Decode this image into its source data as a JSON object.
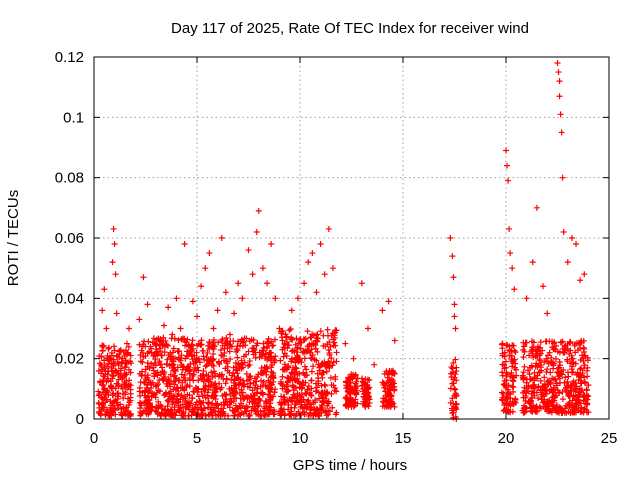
{
  "chart_data": {
    "type": "scatter",
    "title": "Day 117 of 2025, Rate Of TEC Index for receiver wind",
    "xlabel": "GPS time / hours",
    "ylabel": "ROTI / TECUs",
    "xlim": [
      0,
      25
    ],
    "ylim": [
      0,
      0.12
    ],
    "x_ticks": [
      0,
      5,
      10,
      15,
      20,
      25
    ],
    "y_ticks": [
      0,
      0.02,
      0.04,
      0.06,
      0.08,
      0.1,
      0.12
    ],
    "x_tick_labels": [
      "0",
      "5",
      "10",
      "15",
      "20",
      "25"
    ],
    "y_tick_labels": [
      "0",
      "0.02",
      "0.04",
      "0.06",
      "0.08",
      "0.1",
      "0.12"
    ],
    "grid": true,
    "marker": "plus",
    "color": "#ff0000",
    "series": [
      {
        "points": [
          [
            0.3,
            0.012
          ],
          [
            0.4,
            0.036
          ],
          [
            0.5,
            0.043
          ],
          [
            0.6,
            0.03
          ],
          [
            0.7,
            0.008
          ],
          [
            0.8,
            0.02
          ],
          [
            0.9,
            0.052
          ],
          [
            0.95,
            0.063
          ],
          [
            1.0,
            0.058
          ],
          [
            1.05,
            0.048
          ],
          [
            1.1,
            0.035
          ],
          [
            1.2,
            0.015
          ],
          [
            1.4,
            0.01
          ],
          [
            1.6,
            0.025
          ],
          [
            1.7,
            0.03
          ],
          [
            2.2,
            0.033
          ],
          [
            2.4,
            0.047
          ],
          [
            2.6,
            0.038
          ],
          [
            2.8,
            0.022
          ],
          [
            3.0,
            0.015
          ],
          [
            3.2,
            0.026
          ],
          [
            3.4,
            0.031
          ],
          [
            3.6,
            0.037
          ],
          [
            3.8,
            0.028
          ],
          [
            4.0,
            0.04
          ],
          [
            4.2,
            0.03
          ],
          [
            4.4,
            0.058
          ],
          [
            4.6,
            0.024
          ],
          [
            4.8,
            0.039
          ],
          [
            5.0,
            0.034
          ],
          [
            5.2,
            0.044
          ],
          [
            5.4,
            0.05
          ],
          [
            5.6,
            0.055
          ],
          [
            5.8,
            0.03
          ],
          [
            6.0,
            0.036
          ],
          [
            6.2,
            0.06
          ],
          [
            6.4,
            0.042
          ],
          [
            6.6,
            0.028
          ],
          [
            6.8,
            0.035
          ],
          [
            7.0,
            0.045
          ],
          [
            7.2,
            0.04
          ],
          [
            7.5,
            0.056
          ],
          [
            7.7,
            0.048
          ],
          [
            7.9,
            0.062
          ],
          [
            8.0,
            0.069
          ],
          [
            8.2,
            0.05
          ],
          [
            8.4,
            0.045
          ],
          [
            8.6,
            0.058
          ],
          [
            8.8,
            0.04
          ],
          [
            9.0,
            0.03
          ],
          [
            9.3,
            0.028
          ],
          [
            9.6,
            0.036
          ],
          [
            9.9,
            0.04
          ],
          [
            10.2,
            0.045
          ],
          [
            10.4,
            0.052
          ],
          [
            10.6,
            0.055
          ],
          [
            10.8,
            0.042
          ],
          [
            11.0,
            0.058
          ],
          [
            11.2,
            0.048
          ],
          [
            11.4,
            0.063
          ],
          [
            11.6,
            0.05
          ],
          [
            12.2,
            0.025
          ],
          [
            12.6,
            0.02
          ],
          [
            13.0,
            0.045
          ],
          [
            13.3,
            0.03
          ],
          [
            13.6,
            0.018
          ],
          [
            14.0,
            0.036
          ],
          [
            14.3,
            0.039
          ],
          [
            14.6,
            0.026
          ],
          [
            17.3,
            0.06
          ],
          [
            17.4,
            0.054
          ],
          [
            17.45,
            0.047
          ],
          [
            17.5,
            0.038
          ],
          [
            17.5,
            0.034
          ],
          [
            17.55,
            0.03
          ],
          [
            20.0,
            0.089
          ],
          [
            20.05,
            0.084
          ],
          [
            20.1,
            0.079
          ],
          [
            20.15,
            0.063
          ],
          [
            20.2,
            0.055
          ],
          [
            20.3,
            0.05
          ],
          [
            20.4,
            0.043
          ],
          [
            21.0,
            0.04
          ],
          [
            21.3,
            0.052
          ],
          [
            21.5,
            0.07
          ],
          [
            21.8,
            0.044
          ],
          [
            22.0,
            0.035
          ],
          [
            22.5,
            0.118
          ],
          [
            22.55,
            0.115
          ],
          [
            22.6,
            0.112
          ],
          [
            22.6,
            0.107
          ],
          [
            22.65,
            0.101
          ],
          [
            22.7,
            0.095
          ],
          [
            22.75,
            0.08
          ],
          [
            22.8,
            0.062
          ],
          [
            23.0,
            0.052
          ],
          [
            23.2,
            0.06
          ],
          [
            23.4,
            0.058
          ],
          [
            23.6,
            0.046
          ],
          [
            23.8,
            0.048
          ]
        ]
      }
    ],
    "dense_segments": [
      {
        "x": [
          0.2,
          1.8
        ],
        "y": [
          0.001,
          0.025
        ]
      },
      {
        "x": [
          2.2,
          8.8
        ],
        "y": [
          0.001,
          0.027
        ]
      },
      {
        "x": [
          9.0,
          11.8
        ],
        "y": [
          0.001,
          0.03
        ]
      },
      {
        "x": [
          12.2,
          12.8
        ],
        "y": [
          0.004,
          0.015
        ]
      },
      {
        "x": [
          13.0,
          13.4
        ],
        "y": [
          0.004,
          0.014
        ]
      },
      {
        "x": [
          14.0,
          14.6
        ],
        "y": [
          0.004,
          0.016
        ]
      },
      {
        "x": [
          17.3,
          17.6
        ],
        "y": [
          0.0,
          0.02
        ]
      },
      {
        "x": [
          19.8,
          20.5
        ],
        "y": [
          0.002,
          0.025
        ]
      },
      {
        "x": [
          20.8,
          24.0
        ],
        "y": [
          0.002,
          0.026
        ]
      }
    ]
  }
}
